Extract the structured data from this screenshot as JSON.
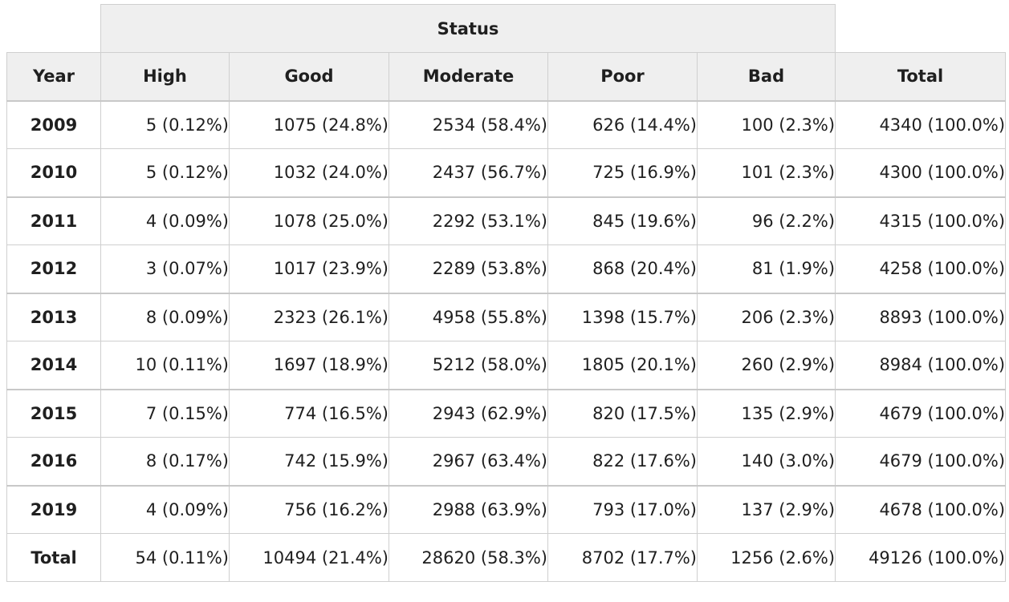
{
  "table": {
    "group_header": "Status",
    "columns": [
      "Year",
      "High",
      "Good",
      "Moderate",
      "Poor",
      "Bad",
      "Total"
    ],
    "rows": [
      {
        "year": "2009",
        "high": "5 (0.12%)",
        "good": "1075 (24.8%)",
        "moderate": "2534 (58.4%)",
        "poor": "626 (14.4%)",
        "bad": "100 (2.3%)",
        "total": "4340 (100.0%)"
      },
      {
        "year": "2010",
        "high": "5 (0.12%)",
        "good": "1032 (24.0%)",
        "moderate": "2437 (56.7%)",
        "poor": "725 (16.9%)",
        "bad": "101 (2.3%)",
        "total": "4300 (100.0%)"
      },
      {
        "year": "2011",
        "high": "4 (0.09%)",
        "good": "1078 (25.0%)",
        "moderate": "2292 (53.1%)",
        "poor": "845 (19.6%)",
        "bad": "96 (2.2%)",
        "total": "4315 (100.0%)"
      },
      {
        "year": "2012",
        "high": "3 (0.07%)",
        "good": "1017 (23.9%)",
        "moderate": "2289 (53.8%)",
        "poor": "868 (20.4%)",
        "bad": "81 (1.9%)",
        "total": "4258 (100.0%)"
      },
      {
        "year": "2013",
        "high": "8 (0.09%)",
        "good": "2323 (26.1%)",
        "moderate": "4958 (55.8%)",
        "poor": "1398 (15.7%)",
        "bad": "206 (2.3%)",
        "total": "8893 (100.0%)"
      },
      {
        "year": "2014",
        "high": "10 (0.11%)",
        "good": "1697 (18.9%)",
        "moderate": "5212 (58.0%)",
        "poor": "1805 (20.1%)",
        "bad": "260 (2.9%)",
        "total": "8984 (100.0%)"
      },
      {
        "year": "2015",
        "high": "7 (0.15%)",
        "good": "774 (16.5%)",
        "moderate": "2943 (62.9%)",
        "poor": "820 (17.5%)",
        "bad": "135 (2.9%)",
        "total": "4679 (100.0%)"
      },
      {
        "year": "2016",
        "high": "8 (0.17%)",
        "good": "742 (15.9%)",
        "moderate": "2967 (63.4%)",
        "poor": "822 (17.6%)",
        "bad": "140 (3.0%)",
        "total": "4679 (100.0%)"
      },
      {
        "year": "2019",
        "high": "4 (0.09%)",
        "good": "756 (16.2%)",
        "moderate": "2988 (63.9%)",
        "poor": "793 (17.0%)",
        "bad": "137 (2.9%)",
        "total": "4678 (100.0%)"
      },
      {
        "year": "Total",
        "high": "54 (0.11%)",
        "good": "10494 (21.4%)",
        "moderate": "28620 (58.3%)",
        "poor": "8702 (17.7%)",
        "bad": "1256 (2.6%)",
        "total": "49126 (100.0%)"
      }
    ]
  }
}
